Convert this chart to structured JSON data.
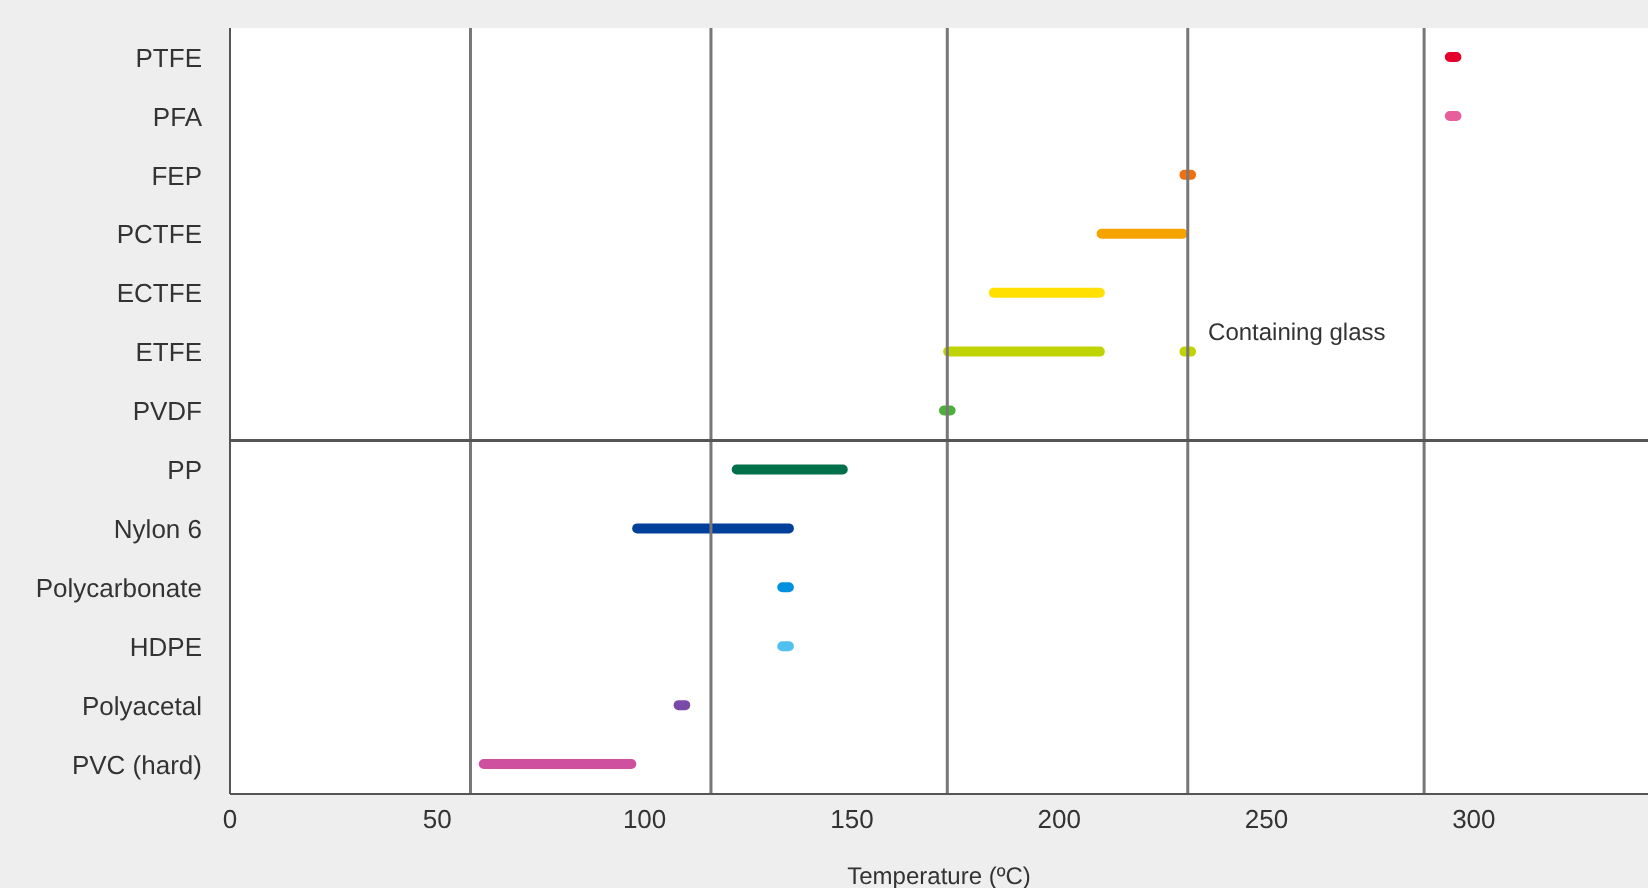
{
  "chart_data": {
    "type": "bar",
    "orientation": "horizontal",
    "xlabel": "Temperature (ºC)",
    "categories": [
      "PTFE",
      "PFA",
      "FEP",
      "PCTFE",
      "ECTFE",
      "ETFE",
      "PVDF",
      "PP",
      "Nylon 6",
      "Polycarbonate",
      "HDPE",
      "Polyacetal",
      "PVC (hard)"
    ],
    "series": [
      {
        "colors": [
          "#e4002b",
          "#e85d9c",
          "#f07010",
          "#f5a300",
          "#ffe000",
          "#bfd400",
          "#4caf3a",
          "#00704a",
          "#003f9a",
          "#0090e0",
          "#50c0ee",
          "#7a4aa8",
          "#d050a0"
        ],
        "base": [
          293,
          293,
          229,
          209,
          183,
          172,
          171,
          121,
          97,
          132,
          132,
          107,
          60
        ],
        "values": [
          4,
          4,
          4,
          22,
          28,
          39,
          4,
          28,
          39,
          4,
          4,
          4,
          38
        ]
      },
      {
        "color": "#bfd400",
        "base": [
          null,
          null,
          null,
          null,
          null,
          229,
          null,
          null,
          null,
          null,
          null,
          null,
          null
        ],
        "values": [
          null,
          null,
          null,
          null,
          null,
          4,
          null,
          null,
          null,
          null,
          null,
          null,
          null
        ]
      }
    ],
    "xlim": [
      0,
      342
    ],
    "xticks": [
      0,
      50,
      100,
      150,
      200,
      250,
      300
    ],
    "grid": false,
    "legend": false,
    "ref_lines": [
      {
        "axis": "x",
        "value": 58,
        "color": "#777777"
      },
      {
        "axis": "x",
        "value": 116,
        "color": "#777777"
      },
      {
        "axis": "x",
        "value": 173,
        "color": "#777777"
      },
      {
        "axis": "x",
        "value": 231,
        "color": "#777777"
      },
      {
        "axis": "x",
        "value": 288,
        "color": "#777777"
      }
    ],
    "annotations": [
      {
        "text": "Containing glass",
        "x": 233,
        "y": "ETFE"
      }
    ]
  }
}
